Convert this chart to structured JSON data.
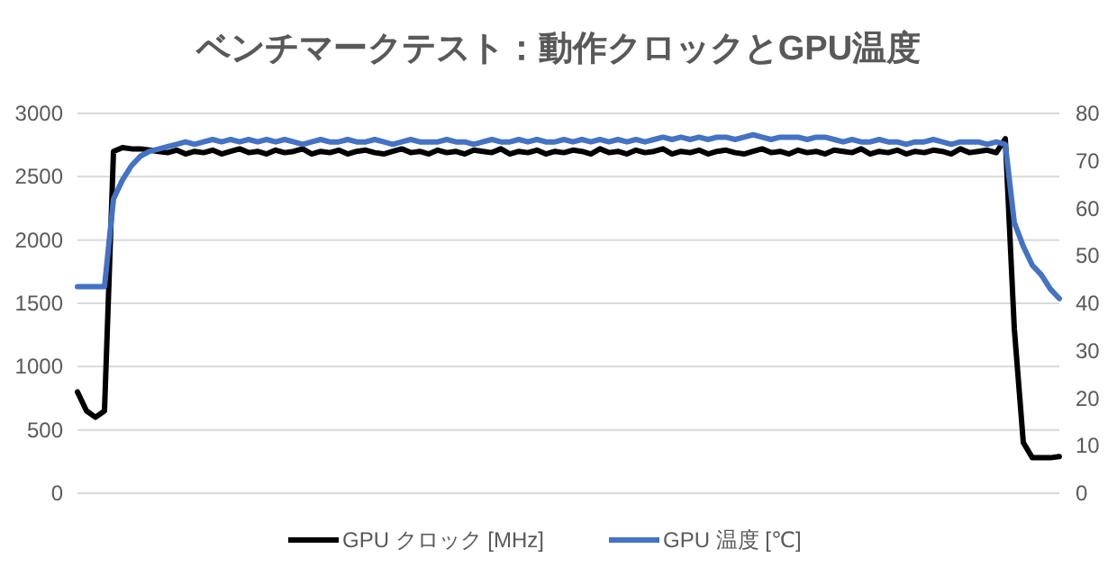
{
  "chart_data": {
    "type": "line",
    "title": "ベンチマークテスト：動作クロックとGPU温度",
    "categories": [
      null,
      null,
      null,
      null,
      null,
      null,
      null,
      null,
      null,
      null,
      null,
      null,
      null,
      null,
      null,
      null,
      null,
      null,
      null,
      null,
      null,
      null,
      null,
      null,
      null,
      null,
      null,
      null,
      null,
      null,
      null,
      null,
      null,
      null,
      null,
      null,
      null,
      null,
      null,
      null,
      null,
      null,
      null,
      null,
      null,
      null,
      null,
      null,
      null,
      null,
      null,
      null,
      null,
      null,
      null,
      null,
      null,
      null,
      null,
      null,
      null,
      null,
      null,
      null,
      null,
      null,
      null,
      null,
      null,
      null,
      null,
      null,
      null,
      null,
      null,
      null,
      null,
      null,
      null,
      null,
      null,
      null,
      null,
      null,
      null,
      null,
      null,
      null,
      null,
      null,
      null,
      null,
      null,
      null,
      null,
      null,
      null,
      null,
      null,
      null,
      null,
      null,
      null,
      null,
      null,
      null,
      null,
      null,
      null,
      null
    ],
    "series": [
      {
        "name": "GPU クロック [MHz]",
        "color": "#000000",
        "values": [
          800,
          650,
          600,
          650,
          2700,
          2730,
          2720,
          2720,
          2710,
          2700,
          2690,
          2710,
          2680,
          2700,
          2690,
          2710,
          2680,
          2700,
          2720,
          2690,
          2700,
          2680,
          2710,
          2690,
          2700,
          2720,
          2680,
          2700,
          2690,
          2710,
          2680,
          2700,
          2710,
          2690,
          2680,
          2700,
          2720,
          2690,
          2700,
          2680,
          2710,
          2690,
          2700,
          2680,
          2710,
          2700,
          2690,
          2720,
          2680,
          2700,
          2690,
          2710,
          2680,
          2700,
          2690,
          2710,
          2700,
          2680,
          2720,
          2690,
          2700,
          2680,
          2710,
          2690,
          2700,
          2720,
          2680,
          2700,
          2690,
          2710,
          2680,
          2700,
          2710,
          2690,
          2680,
          2700,
          2720,
          2690,
          2700,
          2680,
          2710,
          2690,
          2700,
          2680,
          2710,
          2700,
          2690,
          2720,
          2680,
          2700,
          2690,
          2710,
          2680,
          2700,
          2690,
          2710,
          2700,
          2680,
          2720,
          2690,
          2700,
          2710,
          2690,
          2800,
          1300,
          400,
          280,
          280,
          280,
          290
        ]
      },
      {
        "name": "GPU 温度 [℃]",
        "color": "#4472c4",
        "axis": "y2",
        "values": [
          43.5,
          43.5,
          43.5,
          43.5,
          62,
          66,
          69,
          71,
          72,
          72.5,
          73,
          73.5,
          74,
          73.5,
          74,
          74.5,
          74,
          74.5,
          74,
          74.5,
          74,
          74.5,
          74,
          74.5,
          74,
          73.5,
          74,
          74.5,
          74,
          74,
          74.5,
          74,
          74,
          74.5,
          74,
          73.5,
          74,
          74.5,
          74,
          74,
          74,
          74.5,
          74,
          74,
          73.5,
          74,
          74.5,
          74,
          74,
          74.5,
          74,
          74.5,
          74,
          74,
          74.5,
          74,
          74.5,
          74,
          74.5,
          74,
          74.5,
          74,
          74.5,
          74,
          74.5,
          75,
          74.5,
          75,
          74.5,
          75,
          74.5,
          75,
          75,
          74.5,
          75,
          75.5,
          75,
          74.5,
          75,
          75,
          75,
          74.5,
          75,
          75,
          74.5,
          74,
          74.5,
          74,
          74,
          74.5,
          74,
          74,
          73.5,
          74,
          74,
          74.5,
          74,
          73.5,
          74,
          74,
          74,
          73.5,
          74,
          73.5,
          57,
          52,
          48,
          46,
          43,
          41
        ]
      }
    ],
    "ylim": [
      0,
      3000
    ],
    "yticks": [
      0,
      500,
      1000,
      1500,
      2000,
      2500,
      3000
    ],
    "y2lim": [
      0,
      80
    ],
    "y2ticks": [
      0,
      10,
      20,
      30,
      40,
      50,
      60,
      70,
      80
    ],
    "grid": "y",
    "legend": "bottom",
    "tick_labels": "y",
    "line_style": "solid",
    "marker": "none"
  }
}
